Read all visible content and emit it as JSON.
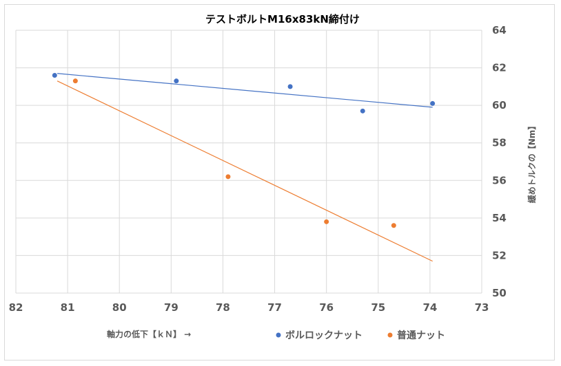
{
  "chart_data": {
    "type": "scatter",
    "title": "テストボルトM16x83kN締付け",
    "xlabel": "軸力の低下【ｋＮ】 →",
    "ylabel": "緩めトルクの【Nm】",
    "xlim": [
      82,
      73
    ],
    "ylim": [
      50,
      64
    ],
    "x_reversed": true,
    "x_ticks": [
      "82",
      "81",
      "80",
      "79",
      "78",
      "77",
      "76",
      "75",
      "74",
      "73"
    ],
    "y_ticks": [
      "64",
      "62",
      "60",
      "58",
      "56",
      "54",
      "52",
      "50"
    ],
    "y_axis_side": "right",
    "grid": true,
    "legend": "bottom",
    "series": [
      {
        "name": "ボルロックナット",
        "color": "#4472C4",
        "points": [
          {
            "x": 81.25,
            "y": 61.6
          },
          {
            "x": 78.9,
            "y": 61.3
          },
          {
            "x": 76.7,
            "y": 61.0
          },
          {
            "x": 75.3,
            "y": 59.7
          },
          {
            "x": 73.95,
            "y": 60.1
          }
        ],
        "trendline": {
          "x": [
            81.2,
            73.95
          ],
          "y": [
            61.7,
            59.9
          ]
        }
      },
      {
        "name": "普通ナット",
        "color": "#ED7D31",
        "points": [
          {
            "x": 80.85,
            "y": 61.3
          },
          {
            "x": 77.9,
            "y": 56.2
          },
          {
            "x": 76.0,
            "y": 53.8
          },
          {
            "x": 74.7,
            "y": 53.6
          }
        ],
        "trendline": {
          "x": [
            81.2,
            73.95
          ],
          "y": [
            61.3,
            51.7
          ]
        }
      }
    ]
  }
}
